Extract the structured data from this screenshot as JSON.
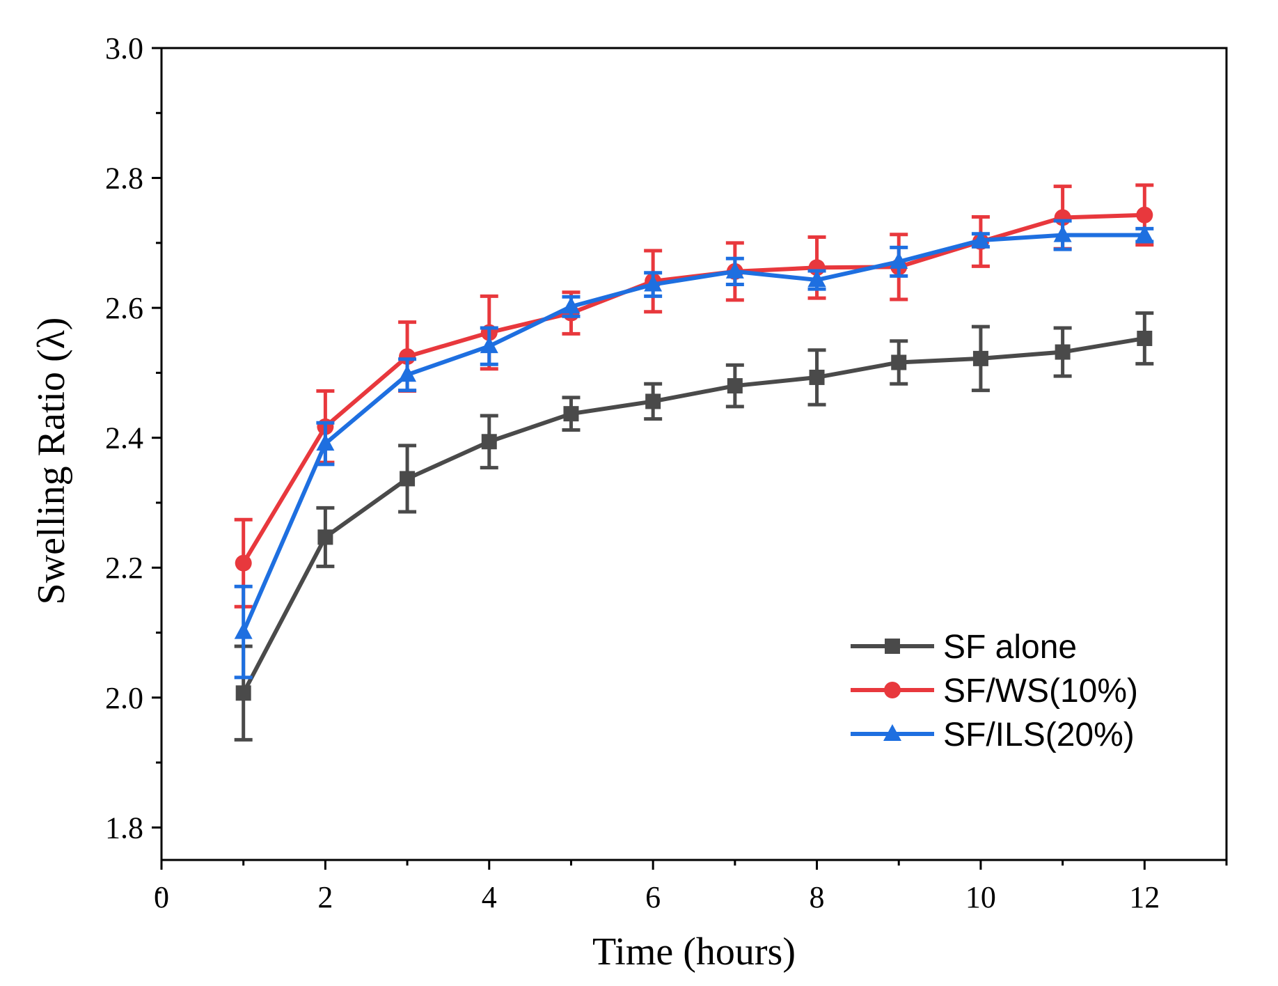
{
  "chart_data": {
    "type": "line",
    "title": "",
    "xlabel": "Time (hours)",
    "ylabel": "Swelling Ratio (λ)",
    "xlim": [
      0,
      13
    ],
    "ylim": [
      1.75,
      3.0
    ],
    "xticks": [
      0,
      2,
      4,
      6,
      8,
      10,
      12
    ],
    "xtick_labels": [
      "0",
      "2",
      "4",
      "6",
      "8",
      "10",
      "12"
    ],
    "yticks": [
      1.8,
      2.0,
      2.2,
      2.4,
      2.6,
      2.8,
      3.0
    ],
    "ytick_labels": [
      "1.8",
      "2.0",
      "2.2",
      "2.4",
      "2.6",
      "2.8",
      "3.0"
    ],
    "legend_position": "bottom-right",
    "grid": false,
    "x": [
      1,
      2,
      3,
      4,
      5,
      6,
      7,
      8,
      9,
      10,
      11,
      12
    ],
    "series": [
      {
        "name": "SF alone",
        "color": "#4a4a4a",
        "marker": "square",
        "values": [
          2.007,
          2.247,
          2.337,
          2.394,
          2.437,
          2.456,
          2.48,
          2.493,
          2.516,
          2.522,
          2.532,
          2.553
        ],
        "errors": [
          0.072,
          0.045,
          0.051,
          0.04,
          0.025,
          0.027,
          0.032,
          0.042,
          0.033,
          0.049,
          0.037,
          0.039
        ]
      },
      {
        "name": "SF/WS(10%)",
        "color": "#e8383d",
        "marker": "circle",
        "values": [
          2.207,
          2.417,
          2.525,
          2.562,
          2.592,
          2.641,
          2.656,
          2.662,
          2.663,
          2.702,
          2.739,
          2.743
        ],
        "errors": [
          0.067,
          0.055,
          0.053,
          0.056,
          0.032,
          0.047,
          0.044,
          0.047,
          0.05,
          0.038,
          0.048,
          0.046
        ]
      },
      {
        "name": "SF/ILS(20%)",
        "color": "#1e6fe0",
        "marker": "triangle",
        "values": [
          2.101,
          2.391,
          2.497,
          2.541,
          2.602,
          2.636,
          2.656,
          2.643,
          2.671,
          2.704,
          2.712,
          2.712
        ],
        "errors": [
          0.07,
          0.032,
          0.024,
          0.028,
          0.015,
          0.018,
          0.02,
          0.014,
          0.022,
          0.01,
          0.022,
          0.01
        ]
      }
    ]
  }
}
